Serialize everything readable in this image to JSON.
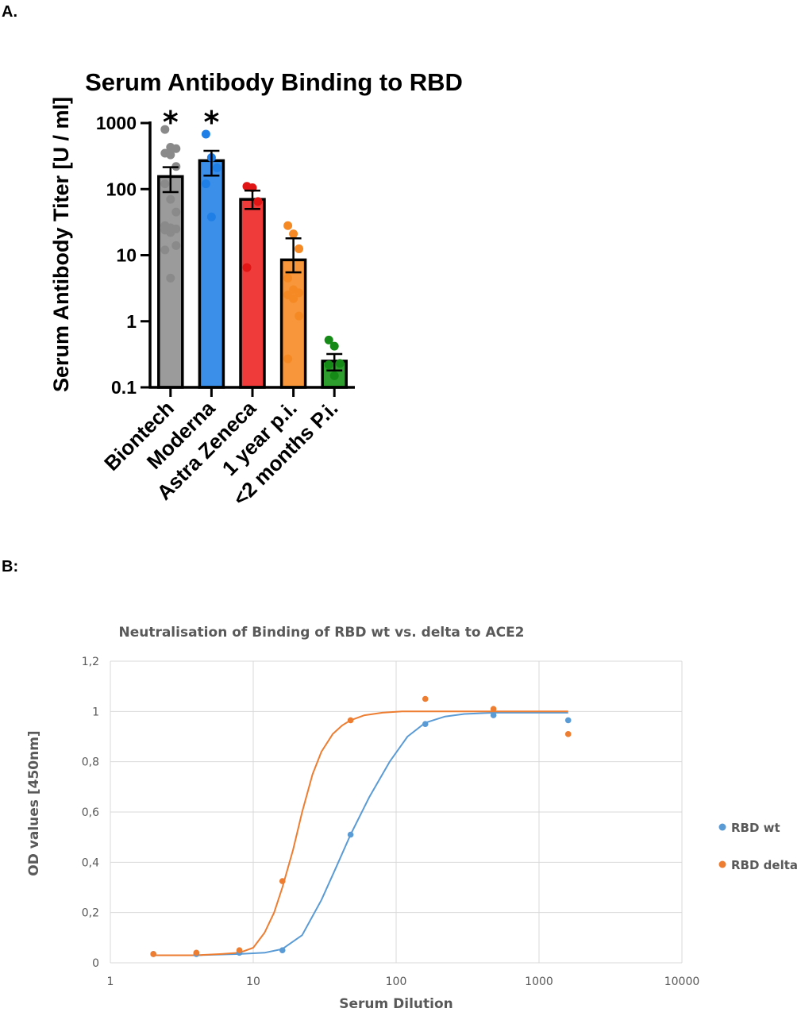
{
  "panels": {
    "a_label": "A.",
    "b_label": "B:"
  },
  "chart_data": [
    {
      "type": "bar",
      "title": "Serum Antibody Binding to RBD",
      "ylabel": "Serum Antibody Titer [U / ml]",
      "xlabel": "",
      "yscale": "log",
      "ylim": [
        0.1,
        1000
      ],
      "yticks": [
        0.1,
        1,
        10,
        100,
        1000
      ],
      "ytick_labels": [
        "0.1",
        "1",
        "10",
        "100",
        "1000"
      ],
      "categories": [
        "Biontech",
        "Moderna",
        "Astra Zeneca",
        "1 year p.i.",
        "<2 months P.i."
      ],
      "values": [
        155,
        270,
        70,
        8.5,
        0.25
      ],
      "error_upper": [
        215,
        380,
        95,
        18,
        0.32
      ],
      "error_lower": [
        90,
        160,
        50,
        5.5,
        0.18
      ],
      "colors": [
        "#9b9b9b",
        "#3b8fe8",
        "#f03b3b",
        "#f7963a",
        "#2e9e2e"
      ],
      "point_colors": [
        "#8a8a8a",
        "#1f7fe6",
        "#e01515",
        "#f58a25",
        "#168a16"
      ],
      "significance": [
        "*",
        "*",
        "",
        "",
        ""
      ],
      "points": [
        [
          800,
          430,
          410,
          350,
          330,
          220,
          120,
          70,
          45,
          28,
          26,
          25,
          24,
          22,
          14,
          12,
          4.5
        ],
        [
          680,
          300,
          210,
          120,
          38
        ],
        [
          110,
          105,
          65,
          6.5
        ],
        [
          28,
          21,
          12.5,
          4.5,
          3,
          2.7,
          2.5,
          2.2,
          1.2,
          0.27
        ],
        [
          0.52,
          0.42,
          0.23,
          0.22,
          0.15
        ]
      ]
    },
    {
      "type": "scatter",
      "title": "Neutralisation of Binding of RBD wt vs. delta to ACE2",
      "xlabel": "Serum Dilution",
      "ylabel": "OD values [450nm]",
      "xscale": "log",
      "xlim": [
        1,
        10000
      ],
      "xticks": [
        1,
        10,
        100,
        1000,
        10000
      ],
      "xtick_labels": [
        "1",
        "10",
        "100",
        "1000",
        "10000"
      ],
      "ylim": [
        0,
        1.2
      ],
      "yticks": [
        0,
        0.2,
        0.4,
        0.6,
        0.8,
        1,
        1.2
      ],
      "ytick_labels": [
        "0",
        "0,2",
        "0,4",
        "0,6",
        "0,8",
        "1",
        "1,2"
      ],
      "grid": true,
      "legend_position": "right",
      "series": [
        {
          "name": "RBD wt",
          "color": "#5b9bd5",
          "x": [
            2,
            4,
            8,
            16,
            48,
            160,
            480,
            1600
          ],
          "y": [
            0.035,
            0.035,
            0.04,
            0.05,
            0.51,
            0.95,
            0.985,
            0.965
          ],
          "fit_x": [
            2,
            4,
            8,
            12,
            16,
            22,
            30,
            38,
            48,
            65,
            90,
            120,
            160,
            220,
            300,
            480,
            800,
            1600
          ],
          "fit_y": [
            0.03,
            0.03,
            0.035,
            0.04,
            0.055,
            0.11,
            0.25,
            0.38,
            0.51,
            0.66,
            0.8,
            0.9,
            0.955,
            0.98,
            0.99,
            0.995,
            0.995,
            0.995
          ]
        },
        {
          "name": "RBD delta",
          "color": "#ed7d31",
          "x": [
            2,
            4,
            8,
            16,
            48,
            160,
            480,
            1600
          ],
          "y": [
            0.035,
            0.04,
            0.05,
            0.325,
            0.965,
            1.05,
            1.01,
            0.91
          ],
          "fit_x": [
            2,
            4,
            6,
            8,
            10,
            12,
            14,
            16,
            19,
            22,
            26,
            30,
            36,
            42,
            48,
            60,
            80,
            110,
            160,
            300,
            800,
            1600
          ],
          "fit_y": [
            0.03,
            0.03,
            0.035,
            0.04,
            0.06,
            0.12,
            0.2,
            0.3,
            0.45,
            0.6,
            0.75,
            0.84,
            0.91,
            0.945,
            0.965,
            0.985,
            0.995,
            1.0,
            1.0,
            1.0,
            1.0,
            1.0
          ]
        }
      ]
    }
  ]
}
